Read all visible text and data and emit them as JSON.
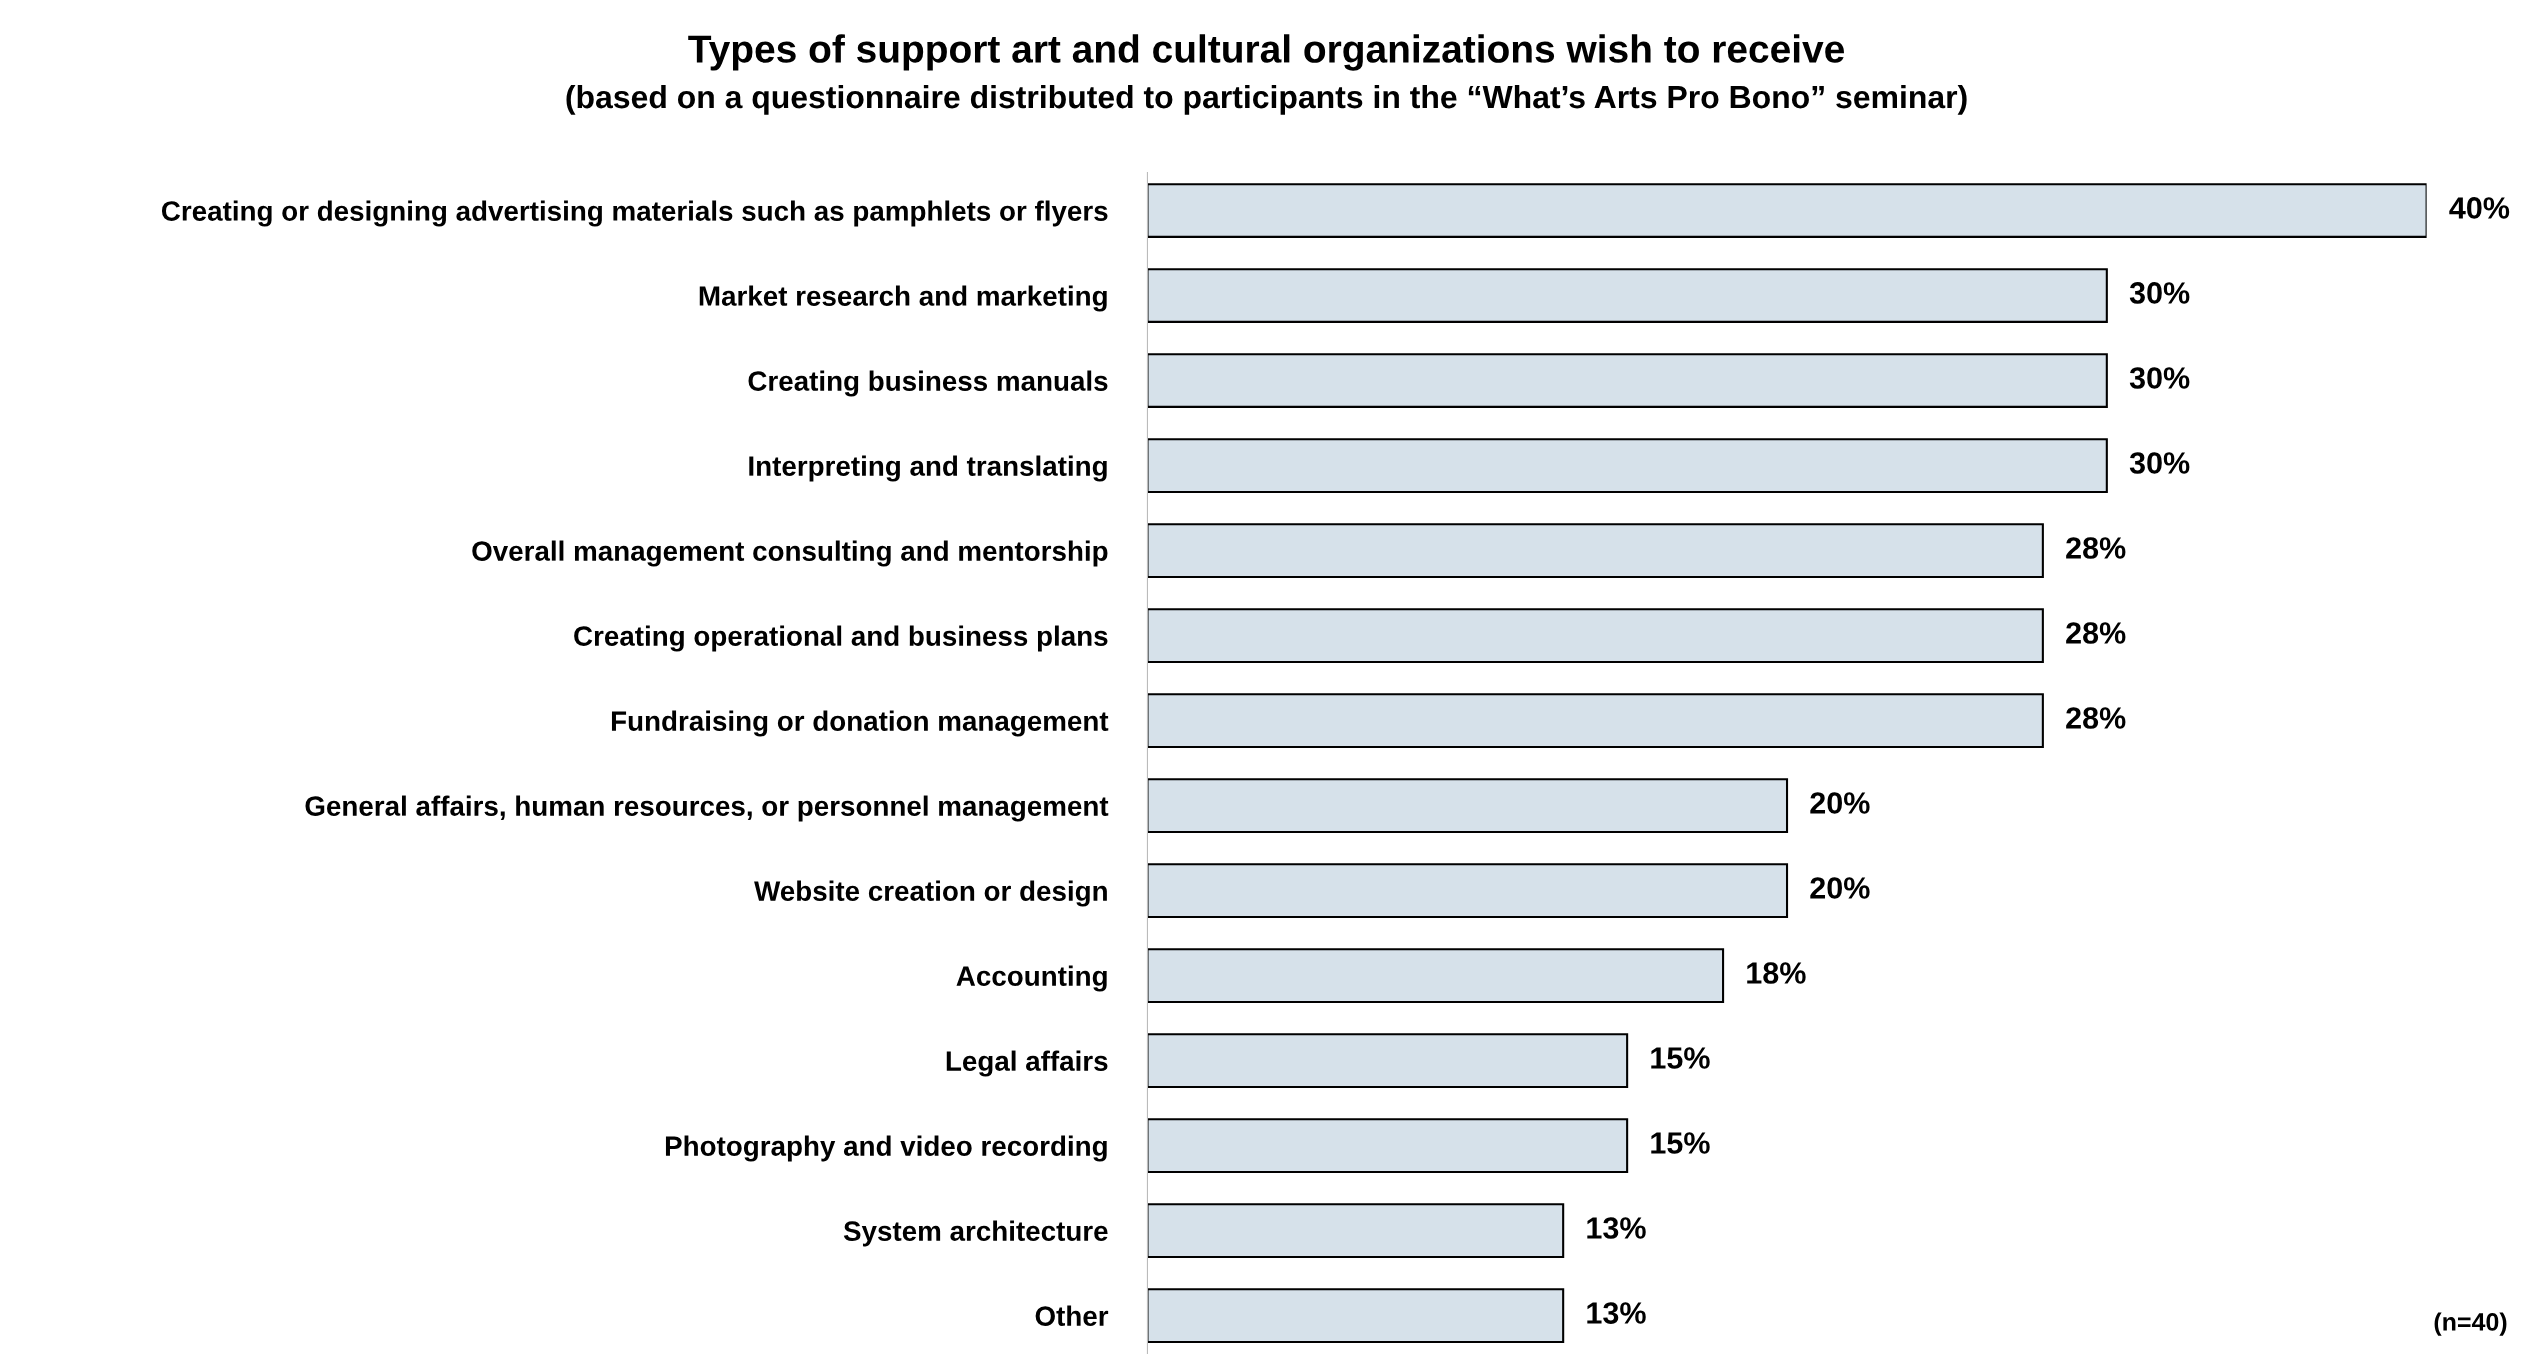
{
  "chart_data": {
    "type": "bar",
    "orientation": "horizontal",
    "title": "Types of support art and cultural organizations wish to receive",
    "subtitle": "(based on a questionnaire distributed to participants in the “What’s Arts Pro Bono” seminar)",
    "categories": [
      "Creating or designing advertising materials such as pamphlets or flyers",
      "Market research and marketing",
      "Creating business manuals",
      "Interpreting and translating",
      "Overall management consulting and mentorship",
      "Creating operational and business plans",
      "Fundraising or donation management",
      "General affairs, human resources, or personnel management",
      "Website creation or design",
      "Accounting",
      "Legal affairs",
      "Photography and video recording",
      "System architecture",
      "Other"
    ],
    "values": [
      40,
      30,
      30,
      30,
      28,
      28,
      28,
      20,
      20,
      18,
      15,
      15,
      13,
      13
    ],
    "value_labels": [
      "40%",
      "30%",
      "30%",
      "30%",
      "28%",
      "28%",
      "28%",
      "20%",
      "20%",
      "18%",
      "15%",
      "15%",
      "13%",
      "13%"
    ],
    "color": "#d6e1ea",
    "annotations": [
      "(n=40)"
    ],
    "tick_labels": "y",
    "grid": false,
    "legend": false
  }
}
